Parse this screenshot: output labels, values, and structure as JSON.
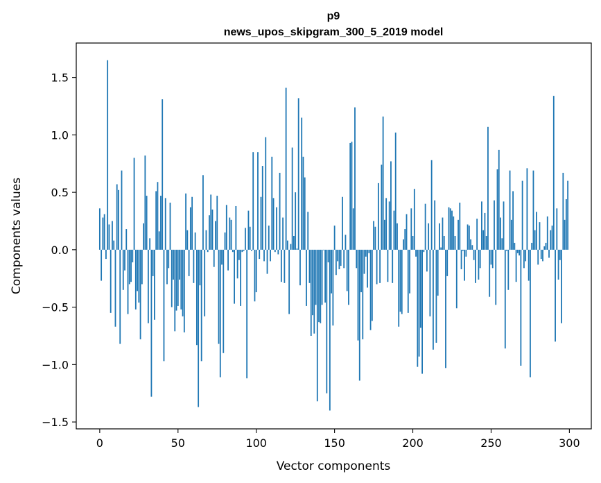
{
  "chart_data": {
    "type": "bar",
    "title": "p9",
    "subtitle": "news_upos_skipgram_300_5_2019 model",
    "xlabel": "Vector components",
    "ylabel": "Components values",
    "xlim": [
      -15,
      314
    ],
    "ylim": [
      -1.56,
      1.8
    ],
    "xticks": [
      0,
      50,
      100,
      150,
      200,
      250,
      300
    ],
    "xtick_labels": [
      "0",
      "50",
      "100",
      "150",
      "200",
      "250",
      "300"
    ],
    "yticks": [
      -1.5,
      -1.0,
      -0.5,
      0.0,
      0.5,
      1.0,
      1.5
    ],
    "ytick_labels": [
      "−1.5",
      "−1.0",
      "−0.5",
      "0.0",
      "0.5",
      "1.0",
      "1.5"
    ],
    "bar_color": "#1f77b4",
    "grid": false,
    "values": [
      0.36,
      -0.27,
      0.28,
      0.31,
      -0.08,
      1.65,
      0.22,
      -0.55,
      0.25,
      0.08,
      -0.67,
      0.57,
      0.52,
      -0.82,
      0.69,
      -0.35,
      -0.18,
      0.18,
      -0.56,
      -0.3,
      -0.28,
      -0.11,
      0.8,
      -0.52,
      -0.36,
      -0.46,
      -0.78,
      -0.3,
      0.23,
      0.82,
      0.47,
      -0.64,
      0.1,
      -1.28,
      -0.23,
      -0.61,
      0.51,
      0.59,
      0.16,
      0.47,
      1.31,
      -0.97,
      0.45,
      -0.3,
      -0.16,
      0.41,
      -0.5,
      -0.26,
      -0.71,
      -0.53,
      -0.49,
      -0.26,
      -0.52,
      -0.58,
      -0.72,
      0.49,
      0.17,
      -0.23,
      0.37,
      0.46,
      -0.29,
      0.15,
      -0.83,
      -1.37,
      -0.31,
      -0.97,
      0.65,
      -0.58,
      0.17,
      -0.02,
      0.3,
      0.48,
      0.35,
      -0.15,
      0.25,
      0.47,
      -0.82,
      -1.11,
      -0.13,
      -0.9,
      0.15,
      0.39,
      -0.18,
      0.28,
      0.26,
      -0.02,
      -0.47,
      0.38,
      -0.25,
      -0.09,
      -0.49,
      -0.02,
      -0.01,
      0.19,
      -1.12,
      0.34,
      0.2,
      -0.01,
      0.85,
      -0.45,
      -0.37,
      0.85,
      -0.08,
      0.46,
      0.73,
      -0.1,
      0.98,
      -0.21,
      0.21,
      -0.1,
      0.81,
      0.45,
      -0.02,
      0.37,
      -0.04,
      0.67,
      -0.28,
      0.28,
      -0.29,
      1.41,
      0.08,
      -0.56,
      0.05,
      0.89,
      0.12,
      0.5,
      0.01,
      1.32,
      -0.31,
      1.15,
      0.81,
      0.63,
      -0.49,
      0.33,
      -0.29,
      -0.75,
      -0.57,
      -0.73,
      -0.48,
      -1.32,
      -0.63,
      -0.64,
      -0.48,
      0.0,
      -0.46,
      -1.25,
      -0.11,
      -1.4,
      -0.38,
      -0.66,
      0.21,
      -0.22,
      -0.1,
      -0.17,
      -0.14,
      0.46,
      -0.16,
      0.13,
      -0.36,
      -0.48,
      0.93,
      0.94,
      0.36,
      1.24,
      -0.16,
      -0.79,
      -1.14,
      -0.37,
      -0.78,
      -0.21,
      -0.06,
      -0.33,
      -0.03,
      -0.7,
      -0.62,
      0.25,
      0.2,
      -0.3,
      0.58,
      -0.29,
      0.74,
      1.16,
      0.26,
      0.45,
      -0.28,
      0.42,
      0.77,
      -0.29,
      0.34,
      1.02,
      0.23,
      -0.67,
      -0.54,
      -0.56,
      0.09,
      0.18,
      0.31,
      -0.55,
      -0.38,
      0.36,
      0.12,
      0.53,
      -0.06,
      -1.02,
      -0.93,
      -0.68,
      -1.08,
      -0.02,
      0.4,
      -0.19,
      0.23,
      -0.58,
      0.78,
      -0.87,
      0.43,
      -0.81,
      -0.4,
      0.23,
      0.02,
      0.28,
      0.12,
      -1.03,
      -0.23,
      0.37,
      0.36,
      0.34,
      0.29,
      0.12,
      -0.51,
      0.26,
      0.41,
      -0.17,
      -0.01,
      -0.27,
      -0.06,
      0.22,
      0.21,
      0.09,
      0.04,
      -0.09,
      -0.29,
      0.27,
      -0.26,
      -0.16,
      0.42,
      0.17,
      0.32,
      0.12,
      1.07,
      -0.41,
      -0.13,
      -0.16,
      0.43,
      -0.48,
      0.7,
      0.87,
      0.28,
      0.1,
      0.42,
      -0.86,
      -0.01,
      -0.35,
      0.69,
      0.26,
      0.51,
      0.06,
      -0.28,
      -0.03,
      -0.05,
      -1.01,
      0.6,
      -0.16,
      -0.1,
      0.71,
      -0.27,
      -1.11,
      0.06,
      0.69,
      0.17,
      0.33,
      -0.13,
      0.24,
      -0.08,
      -0.1,
      0.03,
      0.06,
      0.29,
      -0.07,
      0.17,
      0.21,
      1.34,
      -0.8,
      0.36,
      -0.26,
      -0.09,
      -0.64,
      0.67,
      0.26,
      0.44,
      0.6
    ]
  }
}
